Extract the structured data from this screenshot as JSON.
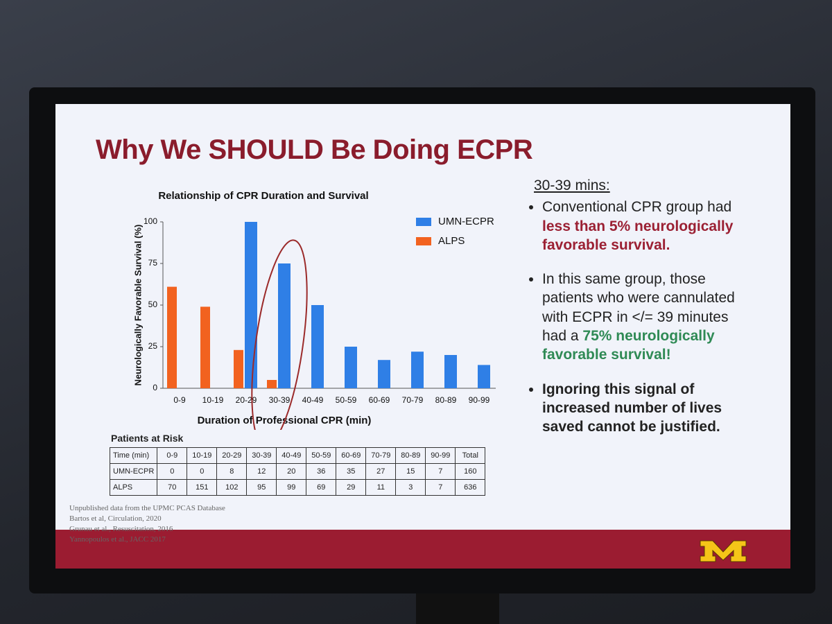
{
  "slide_title": "Why We SHOULD Be Doing ECPR",
  "chart_data": {
    "type": "bar",
    "title": "Relationship of CPR Duration and Survival",
    "y_label": "Neurologically Favorable Survival (%)",
    "x_label": "Duration of Professional CPR (min)",
    "categories": [
      "0-9",
      "10-19",
      "20-29",
      "30-39",
      "40-49",
      "50-59",
      "60-69",
      "70-79",
      "80-89",
      "90-99"
    ],
    "series": [
      {
        "name": "UMN-ECPR",
        "color": "#2f7fe6",
        "values": [
          0,
          0,
          100,
          75,
          50,
          25,
          17,
          22,
          20,
          14
        ]
      },
      {
        "name": "ALPS",
        "color": "#f2621f",
        "values": [
          61,
          49,
          23,
          5,
          0,
          0,
          0,
          0,
          0,
          0
        ]
      }
    ],
    "ylim": [
      0,
      100
    ],
    "yticks": [
      0,
      25,
      50,
      75,
      100
    ],
    "grid": false,
    "legend": "top-right"
  },
  "table": {
    "title": "Patients at Risk",
    "header": [
      "Time (min)",
      "0-9",
      "10-19",
      "20-29",
      "30-39",
      "40-49",
      "50-59",
      "60-69",
      "70-79",
      "80-89",
      "90-99",
      "Total"
    ],
    "rows": [
      [
        "UMN-ECPR",
        0,
        0,
        8,
        12,
        20,
        36,
        35,
        27,
        15,
        7,
        160
      ],
      [
        "ALPS",
        70,
        151,
        102,
        95,
        99,
        69,
        29,
        11,
        3,
        7,
        636
      ]
    ]
  },
  "notes": {
    "heading": "30-39 mins:",
    "bullets": [
      [
        "Conventional CPR group had ",
        "less than 5% neurologically favorable survival."
      ],
      [
        "In this same group, those patients who were cannulated with ECPR in </= 39 minutes had a ",
        "75% neurologically favorable survival!"
      ],
      [
        "Ignoring this signal of increased number of lives saved cannot be justified."
      ]
    ]
  },
  "footnotes": [
    "Unpublished data from the UPMC PCAS Database",
    "Bartos et al, Circulation, 2020",
    "Grunau et al., Resuscitation, 2016",
    "Yannopoulos et al., JACC 2017"
  ]
}
